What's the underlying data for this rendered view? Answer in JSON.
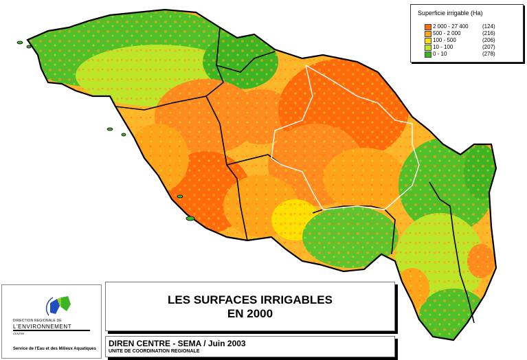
{
  "legend": {
    "title": "Superficie irrigable (Ha)",
    "classes": [
      {
        "range": "2 000 - 27 400",
        "count": "(124)",
        "color": "#ff6a0c"
      },
      {
        "range": "500 -   2 000",
        "count": "(216)",
        "color": "#ffa31a"
      },
      {
        "range": "100 -     500",
        "count": "(206)",
        "color": "#ffe000"
      },
      {
        "range": "10 -     100",
        "count": "(207)",
        "color": "#bde52a"
      },
      {
        "range": "0 -      10",
        "count": "(278)",
        "color": "#3cb423"
      }
    ]
  },
  "title": {
    "line1": "LES SURFACES IRRIGABLES",
    "line2": "EN 2000"
  },
  "credits": {
    "main": "DIREN CENTRE - SEMA / Juin 2003",
    "sub": "UNITE DE COORDINATION REGIONALE"
  },
  "logo": {
    "line1": "DIRECTION REGIONALE DE",
    "line2": "L'ENVIRONNEMENT",
    "line3": "CENTRE",
    "service": "Service de l'Eau et des Milieux Aquatiques"
  }
}
